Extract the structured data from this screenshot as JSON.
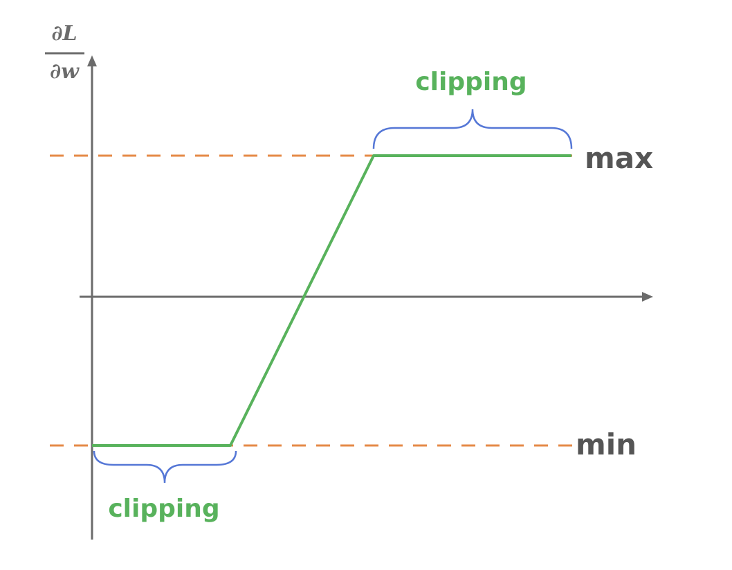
{
  "y_axis": {
    "numerator": "∂L",
    "denominator": "∂w"
  },
  "levels": {
    "max_label": "max",
    "min_label": "min"
  },
  "annotations": {
    "top_label": "clipping",
    "bottom_label": "clipping"
  },
  "colors": {
    "axis": "#6b6b6b",
    "threshold_dashed": "#e58a47",
    "clipped_function": "#58b25c",
    "brace": "#5577d6",
    "label_dark": "#555555",
    "label_green": "#58b25c"
  }
}
